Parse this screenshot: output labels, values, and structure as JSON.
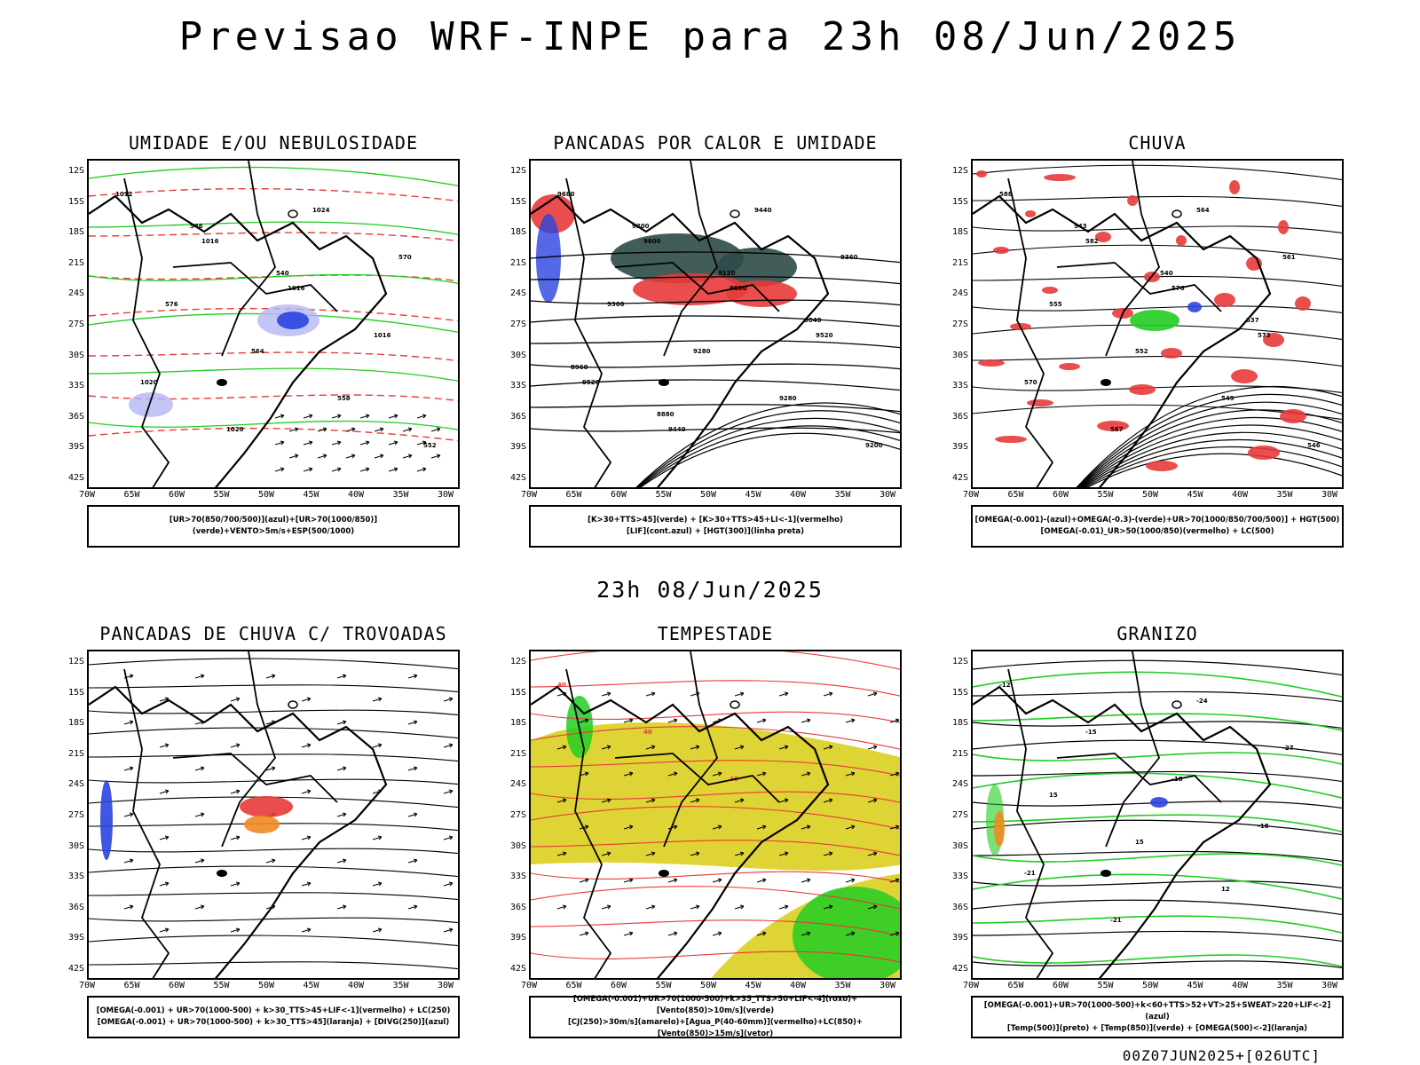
{
  "title": "Previsao WRF-INPE  para 23h 08/Jun/2025",
  "subtitle": "23h 08/Jun/2025",
  "footer": "00Z07JUN2025+[026UTC]",
  "axes": {
    "lat_labels": [
      "12S",
      "15S",
      "18S",
      "21S",
      "24S",
      "27S",
      "30S",
      "33S",
      "36S",
      "39S",
      "42S"
    ],
    "lon_labels": [
      "70W",
      "65W",
      "60W",
      "55W",
      "50W",
      "45W",
      "40W",
      "35W",
      "30W"
    ]
  },
  "colors": {
    "blue": "#2a44e0",
    "green": "#22cc22",
    "red": "#e83a3a",
    "yellow": "#ddd22a",
    "orange": "#f08a20",
    "darkteal": "#2e4a48",
    "lightblue": "#b3b7f2",
    "black": "#000000"
  },
  "panels": [
    {
      "title": "UMIDADE E/OU NEBULOSIDADE",
      "legend": [
        "[UR>70(850/700/500)](azul)+[UR>70(1000/850)](verde)+VENTO>5m/s+ESP(500/1000)"
      ],
      "contour_labels": [
        "1012",
        "1016",
        "1016",
        "1016",
        "1020",
        "1020",
        "1024",
        "570",
        "576",
        "564",
        "558",
        "552",
        "546",
        "540"
      ]
    },
    {
      "title": "PANCADAS POR CALOR E UMIDADE",
      "legend": [
        "[K>30+TTS>45](verde) + [K>30+TTS>45+LI<-1](vermelho)",
        "[LIF](cont.azul) + [HGT(300)](linha preta)"
      ],
      "contour_labels": [
        "9680",
        "9600",
        "9600",
        "9520",
        "9520",
        "9440",
        "9440",
        "9360",
        "9360",
        "9280",
        "9280",
        "9200",
        "9200",
        "9120",
        "9040",
        "8960",
        "8880"
      ]
    },
    {
      "title": "CHUVA",
      "legend": [
        "[OMEGA(-0.001)-(azul)+OMEGA(-0.3)-(verde)+UR>70(1000/850/700/500)] + HGT(500)",
        "[OMEGA(-0.01)_UR>50(1000/850)(vermelho) + LC(500)"
      ],
      "contour_labels": [
        "588",
        "582",
        "576",
        "573",
        "570",
        "567",
        "564",
        "561",
        "555",
        "552",
        "549",
        "546",
        "543",
        "540",
        "537"
      ]
    },
    {
      "title": "PANCADAS DE CHUVA C/ TROVOADAS",
      "legend": [
        "[OMEGA(-0.001) + UR>70(1000-500) + k>30_TTS>45+LIF<-1](vermelho) + LC(250)",
        "[OMEGA(-0.001) + UR>70(1000-500) + k>30_TTS>45](laranja) + [DIVG(250)](azul)"
      ],
      "contour_labels": []
    },
    {
      "title": "TEMPESTADE",
      "legend": [
        "[OMEGA(-0.001)+UR>70(1000-500)+k>35_TTS>50+LIF<-4](roxo)+[Vento(850)>10m/s](verde)",
        "[CJ(250)>30m/s](amarelo)+[Agua_P(40-60mm)](vermelho)+LC(850)+[Vento(850)>15m/s](vetor)"
      ],
      "contour_labels": [
        "40",
        "40",
        "40"
      ]
    },
    {
      "title": "GRANIZO",
      "legend": [
        "[OMEGA(-0.001)+UR>70(1000-500)+k<60+TTS>52+VT>25+SWEAT>220+LIF<-2](azul)",
        "[Temp(500)](preto) + [Temp(850)](verde) + [OMEGA(500)<-2](laranja)"
      ],
      "contour_labels": [
        "-12",
        "-15",
        "-18",
        "-18",
        "-21",
        "-21",
        "-24",
        "-27",
        "15",
        "15",
        "12"
      ]
    }
  ]
}
